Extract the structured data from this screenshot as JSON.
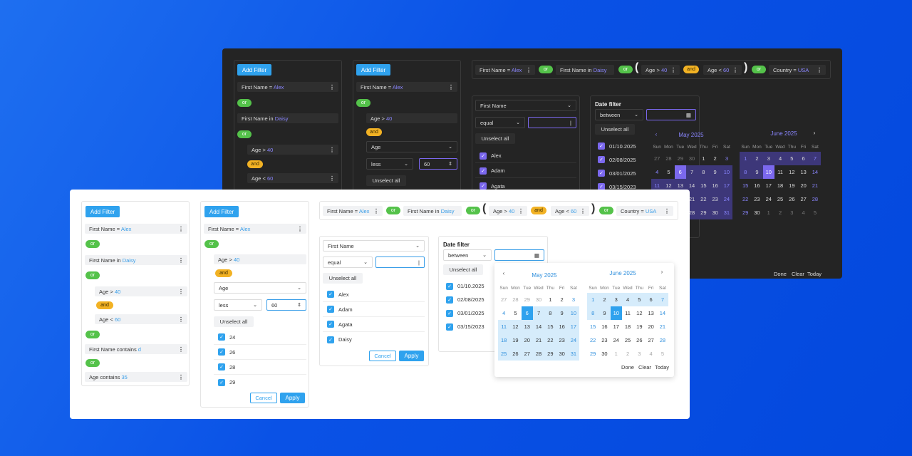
{
  "filter": {
    "add": "Add Filter",
    "or": "or",
    "and": "and",
    "unselect": "Unselect all",
    "cancel": "Cancel",
    "apply": "Apply",
    "more": "⋮"
  },
  "rules": {
    "fn_alex": {
      "field": "First Name",
      "op": "=",
      "val": "Alex"
    },
    "fn_daisy": {
      "field": "First Name",
      "op": "in",
      "val": "Daisy"
    },
    "age40": {
      "field": "Age",
      "op": ">",
      "val": "40"
    },
    "age60": {
      "field": "Age",
      "op": "<",
      "val": "60"
    },
    "fn_contains": {
      "field": "First Name",
      "op": "contains",
      "val": "d"
    },
    "age_contains": {
      "field": "Age",
      "op": "contains",
      "val": "35"
    },
    "country": {
      "field": "Country",
      "op": "=",
      "val": "USA"
    }
  },
  "editor2": {
    "field": "Age",
    "op": "less",
    "value": "60",
    "options": [
      "24",
      "26",
      "28",
      "29"
    ]
  },
  "editor3": {
    "field": "First Name",
    "op": "equal",
    "value": "",
    "options": [
      "Alex",
      "Adam",
      "Agata",
      "Daisy"
    ]
  },
  "datefilter": {
    "title": "Date filter",
    "op": "between",
    "dates": [
      "01/10.2025",
      "02/08/2025",
      "03/01/2025",
      "03/15/2023"
    ]
  },
  "calendar": {
    "weekdays": [
      "Sun",
      "Mon",
      "Tue",
      "Wed",
      "Thu",
      "Fri",
      "Sat"
    ],
    "may": {
      "title": "May 2025",
      "days": [
        "27",
        "28",
        "29",
        "30",
        "1",
        "2",
        "3",
        "4",
        "5",
        "6",
        "7",
        "8",
        "9",
        "10",
        "11",
        "12",
        "13",
        "14",
        "15",
        "16",
        "17",
        "18",
        "19",
        "20",
        "21",
        "22",
        "23",
        "24",
        "25",
        "26",
        "27",
        "28",
        "29",
        "30",
        "31"
      ]
    },
    "june": {
      "title": "June 2025",
      "days": [
        "1",
        "2",
        "3",
        "4",
        "5",
        "6",
        "7",
        "8",
        "9",
        "10",
        "11",
        "12",
        "13",
        "14",
        "15",
        "16",
        "17",
        "18",
        "19",
        "20",
        "21",
        "22",
        "23",
        "24",
        "25",
        "26",
        "27",
        "28",
        "29",
        "30",
        "1",
        "2",
        "3",
        "4",
        "5"
      ]
    },
    "done": "Done",
    "clear": "Clear",
    "today": "Today"
  },
  "colors": {
    "accent_light": "#2fa2ee",
    "accent_dark": "#7b68ee",
    "or": "#54c24a",
    "and": "#f2b224"
  }
}
